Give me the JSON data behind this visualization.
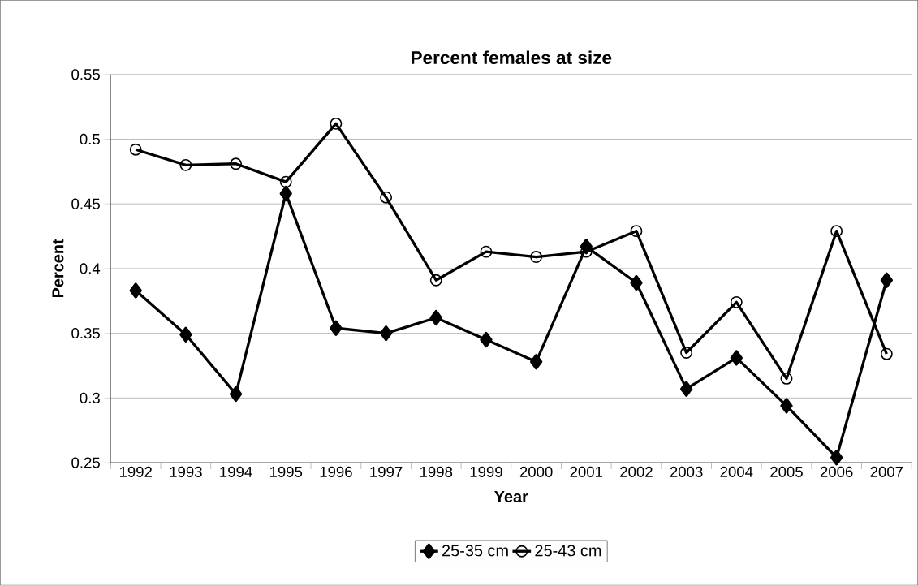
{
  "chart_data": {
    "type": "line",
    "title": "Percent females at size",
    "xlabel": "Year",
    "ylabel": "Percent",
    "categories": [
      "1992",
      "1993",
      "1994",
      "1995",
      "1996",
      "1997",
      "1998",
      "1999",
      "2000",
      "2001",
      "2002",
      "2003",
      "2004",
      "2005",
      "2006",
      "2007"
    ],
    "series": [
      {
        "name": "25-35 cm",
        "color": "#000000",
        "marker": "diamond",
        "values": [
          0.383,
          0.349,
          0.303,
          0.458,
          0.354,
          0.35,
          0.362,
          0.345,
          0.328,
          0.417,
          0.389,
          0.307,
          0.331,
          0.294,
          0.254,
          0.391
        ]
      },
      {
        "name": "25-43 cm",
        "color": "#000000",
        "marker": "circle",
        "values": [
          0.492,
          0.48,
          0.481,
          0.467,
          0.512,
          0.455,
          0.391,
          0.413,
          0.409,
          0.413,
          0.429,
          0.335,
          0.374,
          0.315,
          0.429,
          0.334
        ]
      }
    ],
    "ylim": [
      0.25,
      0.55
    ],
    "yticks": [
      0.25,
      0.3,
      0.35,
      0.4,
      0.45,
      0.5,
      0.55
    ],
    "grid": "y",
    "legend": "bottom",
    "line_style": "solid"
  }
}
